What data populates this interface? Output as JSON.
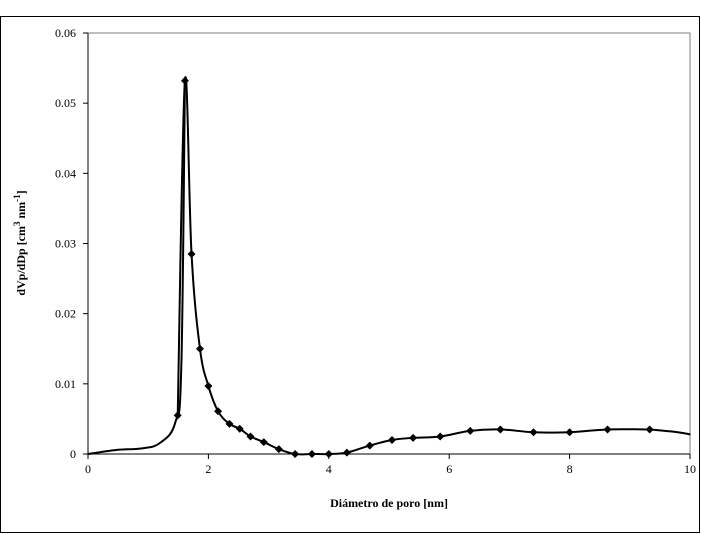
{
  "chart_data": {
    "type": "line",
    "title": "",
    "xlabel": "Diámetro de poro [nm]",
    "ylabel": {
      "prefix": "dVp/dDp [cm",
      "sup1": "3",
      "middle": " nm",
      "sup2": "-1",
      "suffix": "]"
    },
    "xlim": [
      0,
      10
    ],
    "ylim": [
      0,
      0.06
    ],
    "x_ticks": [
      "0",
      "2",
      "4",
      "6",
      "8",
      "10"
    ],
    "y_ticks": [
      "0",
      "0.01",
      "0.02",
      "0.03",
      "0.04",
      "0.05",
      "0.06"
    ],
    "grid": false,
    "legend": "none",
    "line_color": "#000000",
    "marker": "diamond",
    "series": [
      {
        "markers": true,
        "x": [
          1.49,
          1.61,
          1.72,
          1.86,
          2.0,
          2.16,
          2.35,
          2.52,
          2.7,
          2.92,
          3.17,
          3.44,
          3.72,
          4.0,
          4.3,
          4.68,
          5.05,
          5.4,
          5.85,
          6.35,
          6.85,
          7.4,
          8.0,
          8.63,
          9.33
        ],
        "y": [
          0.0055,
          0.0532,
          0.0285,
          0.015,
          0.0097,
          0.0061,
          0.0043,
          0.0036,
          0.0025,
          0.0017,
          0.0007,
          0.0,
          0.0,
          0.0,
          0.0002,
          0.0012,
          0.002,
          0.0023,
          0.0025,
          0.0033,
          0.0035,
          0.0031,
          0.0031,
          0.0035,
          0.0035
        ]
      },
      {
        "markers": false,
        "x": [
          0.0,
          0.5,
          0.9,
          1.2,
          1.45,
          1.55,
          1.61
        ],
        "y": [
          0.0,
          0.0006,
          0.0008,
          0.0016,
          0.0045,
          0.0125,
          0.0532
        ]
      },
      {
        "markers": false,
        "x": [
          9.33,
          9.7,
          10.0,
          10.15
        ],
        "y": [
          0.0035,
          0.0032,
          0.0028,
          0.0025
        ]
      }
    ]
  }
}
